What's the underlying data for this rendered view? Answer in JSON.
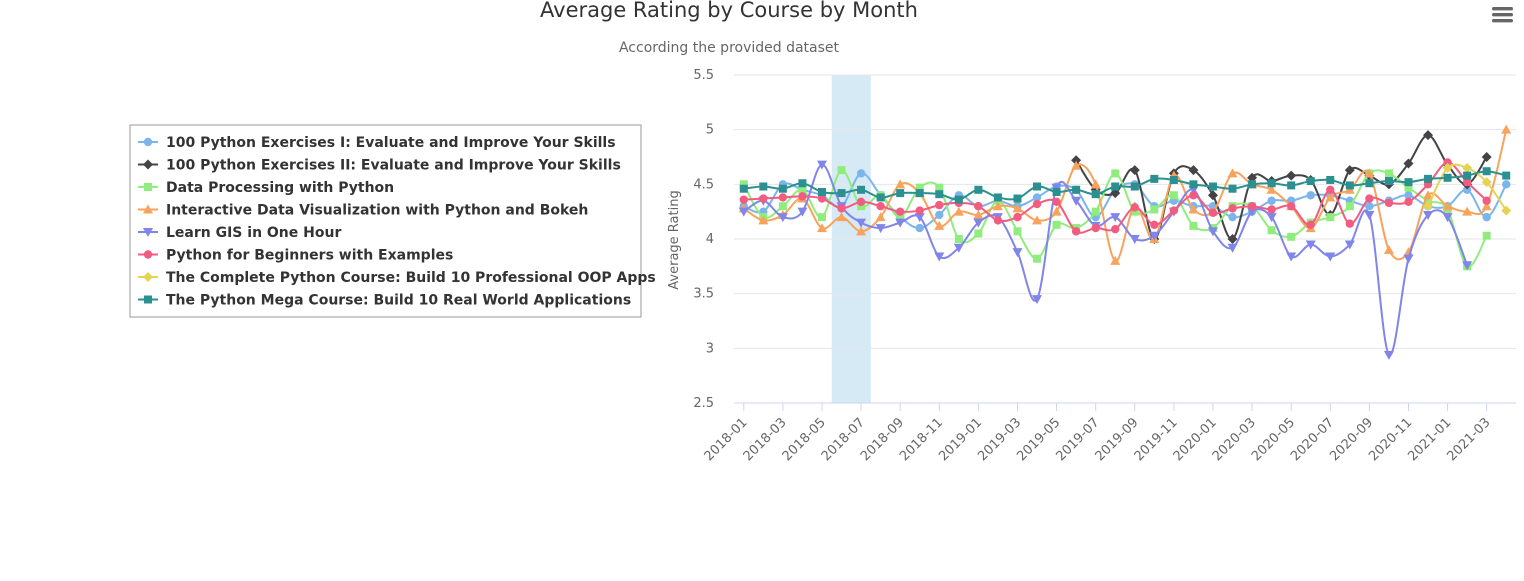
{
  "chart_data": {
    "type": "line",
    "title": "Average Rating by Course by Month",
    "subtitle": "According the provided dataset",
    "ylabel": "Average Rating",
    "xlabel": "",
    "ylim": [
      2.5,
      5.5
    ],
    "yticks": [
      "2.5",
      "3",
      "3.5",
      "4",
      "4.5",
      "5",
      "5.5"
    ],
    "grid": true,
    "legend_placement": "left",
    "x": [
      "2018-01",
      "2018-02",
      "2018-03",
      "2018-04",
      "2018-05",
      "2018-06",
      "2018-07",
      "2018-08",
      "2018-09",
      "2018-10",
      "2018-11",
      "2018-12",
      "2019-01",
      "2019-02",
      "2019-03",
      "2019-04",
      "2019-05",
      "2019-06",
      "2019-07",
      "2019-08",
      "2019-09",
      "2019-10",
      "2019-11",
      "2019-12",
      "2020-01",
      "2020-02",
      "2020-03",
      "2020-04",
      "2020-05",
      "2020-06",
      "2020-07",
      "2020-08",
      "2020-09",
      "2020-10",
      "2020-11",
      "2020-12",
      "2021-01",
      "2021-02",
      "2021-03",
      "2021-04"
    ],
    "xtick_labels": [
      "2018-01",
      "2018-03",
      "2018-05",
      "2018-07",
      "2018-09",
      "2018-11",
      "2019-01",
      "2019-03",
      "2019-05",
      "2019-07",
      "2019-09",
      "2019-11",
      "2020-01",
      "2020-03",
      "2020-05",
      "2020-07",
      "2020-09",
      "2020-11",
      "2021-01",
      "2021-03"
    ],
    "plot_band": {
      "from": "2018-06",
      "to": "2018-07",
      "color": "#d6eaf5"
    },
    "series": [
      {
        "name": "100 Python Exercises I: Evaluate and Improve Your Skills",
        "color": "#7cb5ec",
        "marker": "circle",
        "values": [
          4.3,
          4.25,
          4.5,
          4.45,
          4.4,
          4.3,
          4.6,
          4.4,
          4.2,
          4.1,
          4.22,
          4.4,
          4.3,
          4.35,
          4.3,
          4.38,
          4.48,
          4.45,
          4.2,
          4.45,
          4.5,
          4.3,
          4.35,
          4.3,
          4.3,
          4.2,
          4.25,
          4.35,
          4.35,
          4.4,
          4.4,
          4.35,
          4.3,
          4.35,
          4.4,
          4.3,
          4.3,
          4.45,
          4.2,
          4.5
        ]
      },
      {
        "name": "100 Python Exercises II: Evaluate and Improve Your Skills",
        "color": "#434348",
        "marker": "diamond",
        "values": [
          null,
          null,
          null,
          null,
          null,
          null,
          null,
          null,
          null,
          null,
          null,
          null,
          null,
          null,
          null,
          null,
          null,
          4.72,
          4.45,
          4.42,
          4.63,
          4.0,
          4.6,
          4.63,
          4.4,
          4.0,
          4.56,
          4.53,
          4.58,
          4.54,
          4.22,
          4.63,
          4.58,
          4.5,
          4.69,
          4.95,
          4.68,
          4.5,
          4.75,
          null
        ]
      },
      {
        "name": "Data Processing with Python",
        "color": "#90ed7d",
        "marker": "square",
        "values": [
          4.5,
          4.2,
          4.3,
          4.45,
          4.2,
          4.63,
          4.3,
          4.4,
          4.2,
          4.47,
          4.47,
          4.0,
          4.05,
          4.35,
          4.07,
          3.82,
          4.13,
          4.1,
          4.25,
          4.6,
          4.25,
          4.27,
          4.4,
          4.12,
          4.1,
          4.3,
          4.3,
          4.08,
          4.02,
          4.15,
          4.2,
          4.3,
          4.6,
          4.6,
          4.47,
          4.35,
          4.27,
          3.75,
          4.03,
          null
        ]
      },
      {
        "name": "Interactive Data Visualization with Python and Bokeh",
        "color": "#f7a35c",
        "marker": "triangle",
        "values": [
          4.28,
          4.17,
          4.22,
          4.37,
          4.1,
          4.2,
          4.07,
          4.2,
          4.5,
          4.42,
          4.12,
          4.25,
          4.22,
          4.3,
          4.28,
          4.17,
          4.25,
          4.67,
          4.5,
          3.8,
          4.3,
          4.0,
          4.58,
          4.27,
          4.25,
          4.6,
          4.5,
          4.45,
          4.3,
          4.1,
          4.38,
          4.45,
          4.6,
          3.9,
          3.88,
          4.4,
          4.3,
          4.25,
          4.3,
          5.0
        ]
      },
      {
        "name": "Learn GIS in One Hour",
        "color": "#8085e9",
        "marker": "triangle-down",
        "values": [
          4.25,
          4.35,
          4.2,
          4.25,
          4.68,
          4.3,
          4.15,
          4.1,
          4.15,
          4.2,
          3.84,
          3.92,
          4.15,
          4.2,
          3.88,
          3.45,
          4.47,
          4.35,
          4.12,
          4.2,
          4.0,
          4.03,
          4.25,
          4.45,
          4.07,
          3.92,
          4.25,
          4.2,
          3.84,
          3.95,
          3.84,
          3.95,
          4.22,
          2.94,
          3.82,
          4.22,
          4.2,
          3.76,
          null,
          null
        ]
      },
      {
        "name": "Python for Beginners with Examples",
        "color": "#f15c80",
        "marker": "circle",
        "values": [
          4.36,
          4.37,
          4.38,
          4.39,
          4.37,
          4.28,
          4.34,
          4.3,
          4.25,
          4.26,
          4.31,
          4.33,
          4.3,
          4.17,
          4.2,
          4.32,
          4.34,
          4.07,
          4.1,
          4.09,
          4.29,
          4.13,
          4.26,
          4.4,
          4.24,
          4.28,
          4.3,
          4.27,
          4.3,
          4.13,
          4.45,
          4.14,
          4.37,
          4.33,
          4.34,
          4.5,
          4.7,
          4.52,
          4.35,
          null
        ]
      },
      {
        "name": "The Complete Python Course: Build 10 Professional OOP Apps",
        "color": "#e4d354",
        "marker": "diamond",
        "values": [
          null,
          null,
          null,
          null,
          null,
          null,
          null,
          null,
          null,
          null,
          null,
          null,
          null,
          null,
          null,
          null,
          null,
          null,
          null,
          null,
          null,
          null,
          null,
          null,
          null,
          null,
          null,
          null,
          null,
          null,
          null,
          null,
          null,
          null,
          null,
          4.3,
          4.65,
          4.65,
          4.52,
          4.26
        ]
      },
      {
        "name": "The Python Mega Course: Build 10 Real World Applications",
        "color": "#2b908f",
        "marker": "square",
        "values": [
          4.46,
          4.48,
          4.46,
          4.51,
          4.43,
          4.42,
          4.45,
          4.38,
          4.42,
          4.42,
          4.41,
          4.36,
          4.45,
          4.38,
          4.37,
          4.48,
          4.43,
          4.45,
          4.41,
          4.48,
          4.48,
          4.55,
          4.54,
          4.5,
          4.48,
          4.46,
          4.5,
          4.51,
          4.49,
          4.53,
          4.54,
          4.49,
          4.51,
          4.53,
          4.52,
          4.55,
          4.56,
          4.58,
          4.62,
          4.58
        ]
      }
    ]
  }
}
